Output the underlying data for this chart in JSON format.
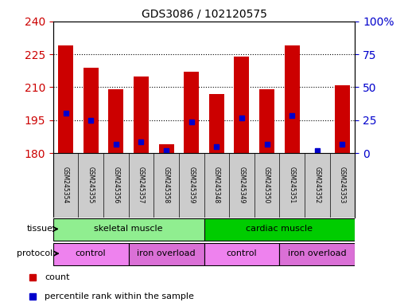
{
  "title": "GDS3086 / 102120575",
  "samples": [
    "GSM245354",
    "GSM245355",
    "GSM245356",
    "GSM245357",
    "GSM245358",
    "GSM245359",
    "GSM245348",
    "GSM245349",
    "GSM245350",
    "GSM245351",
    "GSM245352",
    "GSM245353"
  ],
  "bar_tops": [
    229,
    219,
    209,
    215,
    184,
    217,
    207,
    224,
    209,
    229,
    180,
    211
  ],
  "bar_bottom": 180,
  "blue_markers": [
    198,
    195,
    184,
    185,
    181,
    194,
    183,
    196,
    184,
    197,
    181,
    184
  ],
  "ylim_left": [
    180,
    240
  ],
  "ylim_right": [
    0,
    100
  ],
  "yticks_left": [
    180,
    195,
    210,
    225,
    240
  ],
  "yticks_right": [
    0,
    25,
    50,
    75,
    100
  ],
  "bar_color": "#cc0000",
  "blue_color": "#0000cc",
  "bar_width": 0.6,
  "tissue_groups": [
    {
      "label": "skeletal muscle",
      "start": 0,
      "end": 6,
      "color": "#90ee90"
    },
    {
      "label": "cardiac muscle",
      "start": 6,
      "end": 12,
      "color": "#00cc00"
    }
  ],
  "protocol_groups": [
    {
      "label": "control",
      "start": 0,
      "end": 3,
      "color": "#ee82ee"
    },
    {
      "label": "iron overload",
      "start": 3,
      "end": 6,
      "color": "#da70d6"
    },
    {
      "label": "control",
      "start": 6,
      "end": 9,
      "color": "#ee82ee"
    },
    {
      "label": "iron overload",
      "start": 9,
      "end": 12,
      "color": "#da70d6"
    }
  ],
  "legend_items": [
    {
      "label": "count",
      "color": "#cc0000"
    },
    {
      "label": "percentile rank within the sample",
      "color": "#0000cc"
    }
  ],
  "bg_color": "#ffffff",
  "plot_bg": "#ffffff",
  "tissue_label": "tissue",
  "protocol_label": "protocol",
  "tick_label_color_left": "#cc0000",
  "tick_label_color_right": "#0000cc",
  "xlabels_bg": "#cccccc"
}
